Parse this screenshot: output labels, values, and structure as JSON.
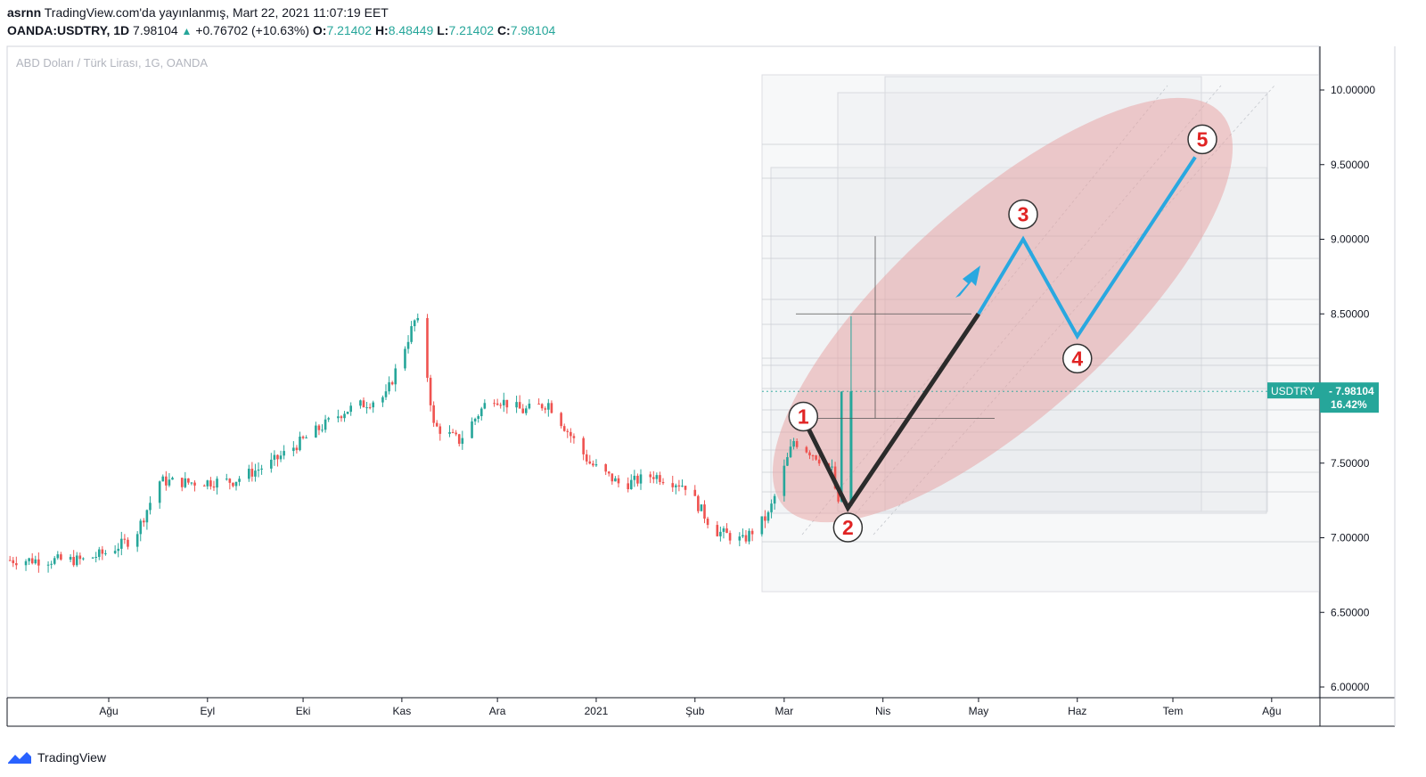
{
  "header": {
    "author": "asrnn",
    "published_text": "TradingView.com'da yayınlanmış, Mart 22, 2021 11:07:19 EET",
    "symbol": "OANDA:USDTRY, 1D",
    "last": "7.98104",
    "change": "+0.76702 (+10.63%)",
    "o_label": "O:",
    "o_value": "7.21402",
    "h_label": "H:",
    "h_value": "8.48449",
    "l_label": "L:",
    "l_value": "7.21402",
    "c_label": "C:",
    "c_value": "7.98104"
  },
  "footer": {
    "brand": "TradingView"
  },
  "colors": {
    "up": "#26a69a",
    "down": "#ef5350",
    "wave_impulse": "#29a8e0",
    "wave_dark": "#2b2b2b",
    "ellipse": "#e8a0a0"
  },
  "chart_data": {
    "type": "candlestick",
    "title": "ABD Doları / Türk Lirası, 1G, OANDA",
    "ylim": [
      5.95,
      10.2
    ],
    "y_ticks": [
      "10.00000",
      "9.50000",
      "9.00000",
      "8.50000",
      "8.00000",
      "7.50000",
      "7.00000",
      "6.50000",
      "6.00000"
    ],
    "x_ticks": [
      "Ağu",
      "Eyl",
      "Eki",
      "Kas",
      "Ara",
      "2021",
      "Şub",
      "Mar",
      "Nis",
      "May",
      "Haz",
      "Tem",
      "Ağu"
    ],
    "price_tag": {
      "symbol": "USDTRY",
      "value": "7.98104",
      "pct": "16.42%"
    },
    "price_path": [
      [
        "2020-07-01",
        6.85
      ],
      [
        "2020-07-25",
        6.85
      ],
      [
        "2020-08-01",
        6.9
      ],
      [
        "2020-08-10",
        7.0
      ],
      [
        "2020-08-18",
        7.38
      ],
      [
        "2020-08-27",
        7.37
      ],
      [
        "2020-09-10",
        7.38
      ],
      [
        "2020-09-22",
        7.5
      ],
      [
        "2020-10-05",
        7.7
      ],
      [
        "2020-10-15",
        7.85
      ],
      [
        "2020-10-28",
        7.95
      ],
      [
        "2020-11-06",
        8.45
      ],
      [
        "2020-11-08",
        8.42
      ],
      [
        "2020-11-12",
        7.75
      ],
      [
        "2020-11-20",
        7.65
      ],
      [
        "2020-11-30",
        7.95
      ],
      [
        "2020-12-10",
        7.85
      ],
      [
        "2020-12-18",
        7.9
      ],
      [
        "2020-12-31",
        7.5
      ],
      [
        "2021-01-10",
        7.35
      ],
      [
        "2021-01-20",
        7.42
      ],
      [
        "2021-01-30",
        7.35
      ],
      [
        "2021-02-08",
        7.05
      ],
      [
        "2021-02-17",
        6.98
      ],
      [
        "2021-02-25",
        7.15
      ],
      [
        "2021-03-05",
        7.65
      ],
      [
        "2021-03-12",
        7.55
      ],
      [
        "2021-03-17",
        7.45
      ],
      [
        "2021-03-19",
        7.21
      ],
      [
        "2021-03-20",
        7.98
      ]
    ],
    "elliott_waves": [
      {
        "label": "1",
        "date": "2021-03-07",
        "price": 7.8
      },
      {
        "label": "2",
        "date": "2021-03-21",
        "price": 7.2
      },
      {
        "label": "3",
        "date": "2021-05-15",
        "price": 9.0
      },
      {
        "label": "4",
        "date": "2021-06-01",
        "price": 8.35
      },
      {
        "label": "5",
        "date": "2021-07-08",
        "price": 9.55
      }
    ],
    "wave_3_start": {
      "date": "2021-05-01",
      "price": 8.5
    }
  }
}
